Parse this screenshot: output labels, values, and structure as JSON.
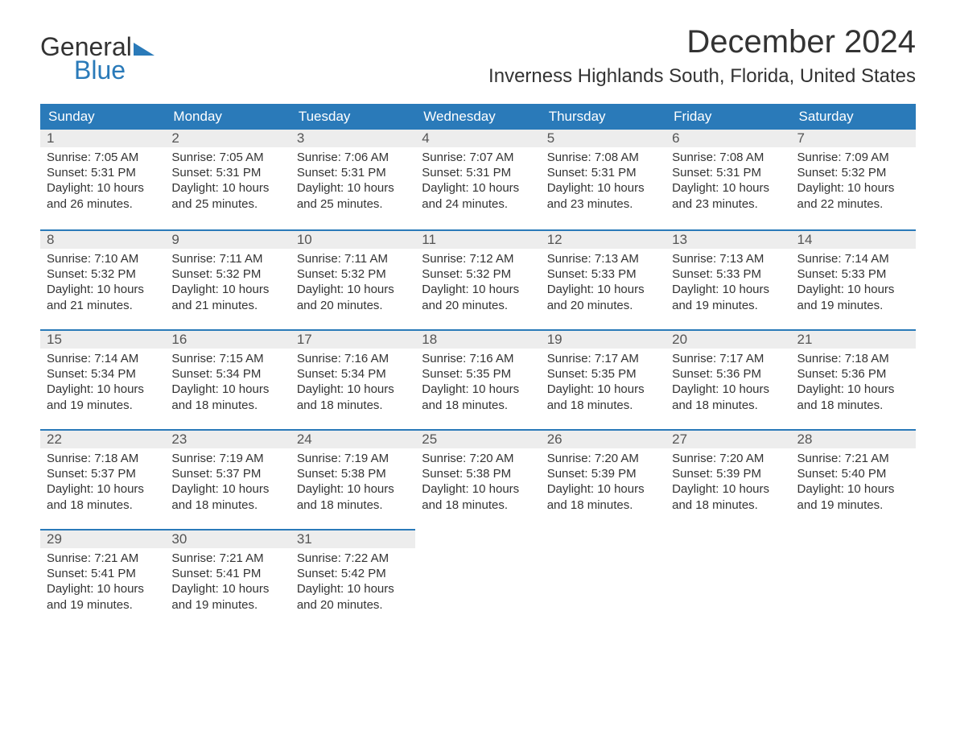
{
  "brand": {
    "text1": "General",
    "text2": "Blue",
    "flag_color": "#2a7ab9"
  },
  "title": "December 2024",
  "location": "Inverness Highlands South, Florida, United States",
  "colors": {
    "header_bg": "#2a7ab9",
    "header_text": "#ffffff",
    "daynum_bg": "#ededed",
    "row_border": "#2a7ab9",
    "body_text": "#333333"
  },
  "weekdays": [
    "Sunday",
    "Monday",
    "Tuesday",
    "Wednesday",
    "Thursday",
    "Friday",
    "Saturday"
  ],
  "weeks": [
    [
      {
        "day": "1",
        "sunrise": "Sunrise: 7:05 AM",
        "sunset": "Sunset: 5:31 PM",
        "dl1": "Daylight: 10 hours",
        "dl2": "and 26 minutes."
      },
      {
        "day": "2",
        "sunrise": "Sunrise: 7:05 AM",
        "sunset": "Sunset: 5:31 PM",
        "dl1": "Daylight: 10 hours",
        "dl2": "and 25 minutes."
      },
      {
        "day": "3",
        "sunrise": "Sunrise: 7:06 AM",
        "sunset": "Sunset: 5:31 PM",
        "dl1": "Daylight: 10 hours",
        "dl2": "and 25 minutes."
      },
      {
        "day": "4",
        "sunrise": "Sunrise: 7:07 AM",
        "sunset": "Sunset: 5:31 PM",
        "dl1": "Daylight: 10 hours",
        "dl2": "and 24 minutes."
      },
      {
        "day": "5",
        "sunrise": "Sunrise: 7:08 AM",
        "sunset": "Sunset: 5:31 PM",
        "dl1": "Daylight: 10 hours",
        "dl2": "and 23 minutes."
      },
      {
        "day": "6",
        "sunrise": "Sunrise: 7:08 AM",
        "sunset": "Sunset: 5:31 PM",
        "dl1": "Daylight: 10 hours",
        "dl2": "and 23 minutes."
      },
      {
        "day": "7",
        "sunrise": "Sunrise: 7:09 AM",
        "sunset": "Sunset: 5:32 PM",
        "dl1": "Daylight: 10 hours",
        "dl2": "and 22 minutes."
      }
    ],
    [
      {
        "day": "8",
        "sunrise": "Sunrise: 7:10 AM",
        "sunset": "Sunset: 5:32 PM",
        "dl1": "Daylight: 10 hours",
        "dl2": "and 21 minutes."
      },
      {
        "day": "9",
        "sunrise": "Sunrise: 7:11 AM",
        "sunset": "Sunset: 5:32 PM",
        "dl1": "Daylight: 10 hours",
        "dl2": "and 21 minutes."
      },
      {
        "day": "10",
        "sunrise": "Sunrise: 7:11 AM",
        "sunset": "Sunset: 5:32 PM",
        "dl1": "Daylight: 10 hours",
        "dl2": "and 20 minutes."
      },
      {
        "day": "11",
        "sunrise": "Sunrise: 7:12 AM",
        "sunset": "Sunset: 5:32 PM",
        "dl1": "Daylight: 10 hours",
        "dl2": "and 20 minutes."
      },
      {
        "day": "12",
        "sunrise": "Sunrise: 7:13 AM",
        "sunset": "Sunset: 5:33 PM",
        "dl1": "Daylight: 10 hours",
        "dl2": "and 20 minutes."
      },
      {
        "day": "13",
        "sunrise": "Sunrise: 7:13 AM",
        "sunset": "Sunset: 5:33 PM",
        "dl1": "Daylight: 10 hours",
        "dl2": "and 19 minutes."
      },
      {
        "day": "14",
        "sunrise": "Sunrise: 7:14 AM",
        "sunset": "Sunset: 5:33 PM",
        "dl1": "Daylight: 10 hours",
        "dl2": "and 19 minutes."
      }
    ],
    [
      {
        "day": "15",
        "sunrise": "Sunrise: 7:14 AM",
        "sunset": "Sunset: 5:34 PM",
        "dl1": "Daylight: 10 hours",
        "dl2": "and 19 minutes."
      },
      {
        "day": "16",
        "sunrise": "Sunrise: 7:15 AM",
        "sunset": "Sunset: 5:34 PM",
        "dl1": "Daylight: 10 hours",
        "dl2": "and 18 minutes."
      },
      {
        "day": "17",
        "sunrise": "Sunrise: 7:16 AM",
        "sunset": "Sunset: 5:34 PM",
        "dl1": "Daylight: 10 hours",
        "dl2": "and 18 minutes."
      },
      {
        "day": "18",
        "sunrise": "Sunrise: 7:16 AM",
        "sunset": "Sunset: 5:35 PM",
        "dl1": "Daylight: 10 hours",
        "dl2": "and 18 minutes."
      },
      {
        "day": "19",
        "sunrise": "Sunrise: 7:17 AM",
        "sunset": "Sunset: 5:35 PM",
        "dl1": "Daylight: 10 hours",
        "dl2": "and 18 minutes."
      },
      {
        "day": "20",
        "sunrise": "Sunrise: 7:17 AM",
        "sunset": "Sunset: 5:36 PM",
        "dl1": "Daylight: 10 hours",
        "dl2": "and 18 minutes."
      },
      {
        "day": "21",
        "sunrise": "Sunrise: 7:18 AM",
        "sunset": "Sunset: 5:36 PM",
        "dl1": "Daylight: 10 hours",
        "dl2": "and 18 minutes."
      }
    ],
    [
      {
        "day": "22",
        "sunrise": "Sunrise: 7:18 AM",
        "sunset": "Sunset: 5:37 PM",
        "dl1": "Daylight: 10 hours",
        "dl2": "and 18 minutes."
      },
      {
        "day": "23",
        "sunrise": "Sunrise: 7:19 AM",
        "sunset": "Sunset: 5:37 PM",
        "dl1": "Daylight: 10 hours",
        "dl2": "and 18 minutes."
      },
      {
        "day": "24",
        "sunrise": "Sunrise: 7:19 AM",
        "sunset": "Sunset: 5:38 PM",
        "dl1": "Daylight: 10 hours",
        "dl2": "and 18 minutes."
      },
      {
        "day": "25",
        "sunrise": "Sunrise: 7:20 AM",
        "sunset": "Sunset: 5:38 PM",
        "dl1": "Daylight: 10 hours",
        "dl2": "and 18 minutes."
      },
      {
        "day": "26",
        "sunrise": "Sunrise: 7:20 AM",
        "sunset": "Sunset: 5:39 PM",
        "dl1": "Daylight: 10 hours",
        "dl2": "and 18 minutes."
      },
      {
        "day": "27",
        "sunrise": "Sunrise: 7:20 AM",
        "sunset": "Sunset: 5:39 PM",
        "dl1": "Daylight: 10 hours",
        "dl2": "and 18 minutes."
      },
      {
        "day": "28",
        "sunrise": "Sunrise: 7:21 AM",
        "sunset": "Sunset: 5:40 PM",
        "dl1": "Daylight: 10 hours",
        "dl2": "and 19 minutes."
      }
    ],
    [
      {
        "day": "29",
        "sunrise": "Sunrise: 7:21 AM",
        "sunset": "Sunset: 5:41 PM",
        "dl1": "Daylight: 10 hours",
        "dl2": "and 19 minutes."
      },
      {
        "day": "30",
        "sunrise": "Sunrise: 7:21 AM",
        "sunset": "Sunset: 5:41 PM",
        "dl1": "Daylight: 10 hours",
        "dl2": "and 19 minutes."
      },
      {
        "day": "31",
        "sunrise": "Sunrise: 7:22 AM",
        "sunset": "Sunset: 5:42 PM",
        "dl1": "Daylight: 10 hours",
        "dl2": "and 20 minutes."
      },
      {
        "day": "",
        "sunrise": "",
        "sunset": "",
        "dl1": "",
        "dl2": ""
      },
      {
        "day": "",
        "sunrise": "",
        "sunset": "",
        "dl1": "",
        "dl2": ""
      },
      {
        "day": "",
        "sunrise": "",
        "sunset": "",
        "dl1": "",
        "dl2": ""
      },
      {
        "day": "",
        "sunrise": "",
        "sunset": "",
        "dl1": "",
        "dl2": ""
      }
    ]
  ]
}
